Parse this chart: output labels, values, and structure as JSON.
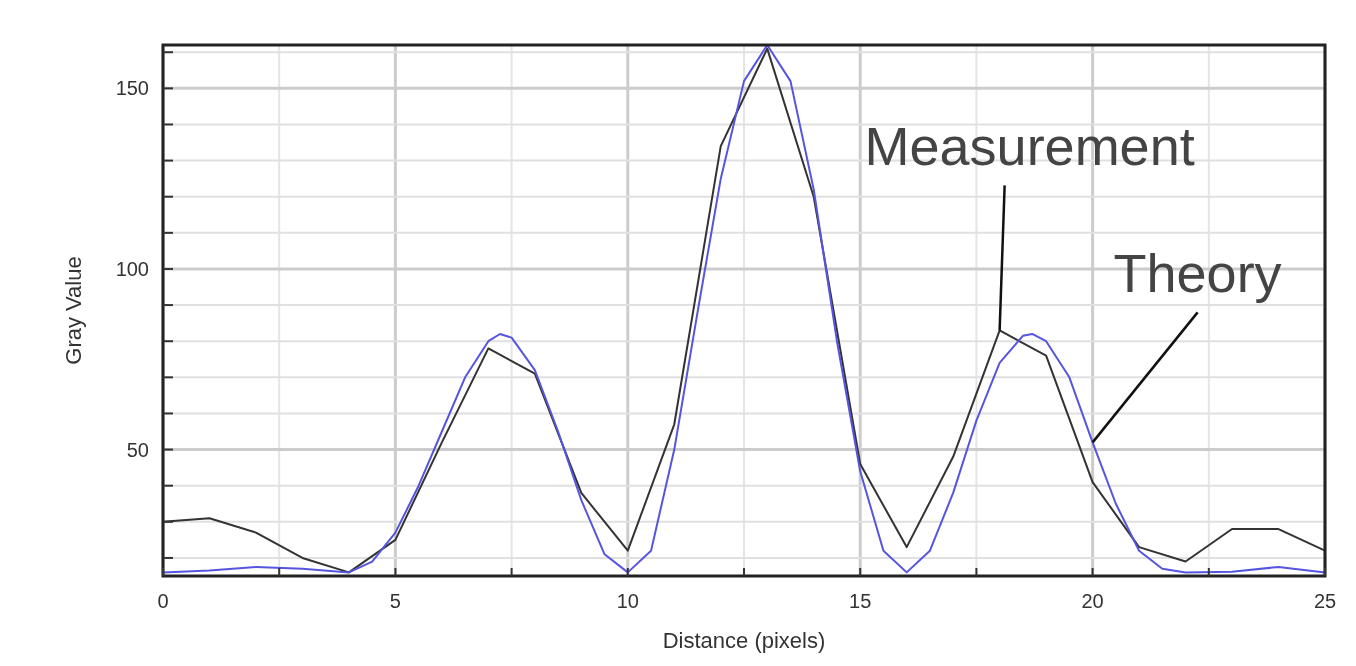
{
  "chart_data": {
    "type": "line",
    "xlabel": "Distance (pixels)",
    "ylabel": "Gray Value",
    "xlim": [
      0,
      25
    ],
    "ylim": [
      15,
      162
    ],
    "xticks": [
      0,
      {
        "value": 2.5,
        "label": null
      },
      5,
      {
        "value": 7.5,
        "label": null
      },
      10,
      {
        "value": 12.5,
        "label": null
      },
      15,
      {
        "value": 17.5,
        "label": null
      },
      20,
      {
        "value": 22.5,
        "label": null
      },
      25
    ],
    "yticks": [
      {
        "value": 20,
        "label": null
      },
      {
        "value": 30,
        "label": null
      },
      {
        "value": 40,
        "label": null
      },
      50,
      {
        "value": 60,
        "label": null
      },
      {
        "value": 70,
        "label": null
      },
      {
        "value": 80,
        "label": null
      },
      {
        "value": 90,
        "label": null
      },
      100,
      {
        "value": 110,
        "label": null
      },
      {
        "value": 120,
        "label": null
      },
      {
        "value": 130,
        "label": null
      },
      {
        "value": 140,
        "label": null
      },
      150,
      {
        "value": 160,
        "label": null
      }
    ],
    "grid": true,
    "marker": "none",
    "series": [
      {
        "color": "#333333",
        "x": [
          0,
          1,
          2,
          3,
          4,
          5,
          6,
          7,
          8,
          9,
          10,
          11,
          12,
          13,
          14,
          15,
          16,
          17,
          18,
          19,
          20,
          21,
          22,
          23,
          24,
          25
        ],
        "values": [
          30,
          31,
          27,
          20,
          16,
          25,
          52,
          78,
          71,
          38,
          22,
          57,
          134,
          161,
          120,
          46,
          23,
          48,
          83,
          76,
          41,
          23,
          19,
          28,
          28,
          22
        ]
      },
      {
        "color": "#5555e0",
        "x": [
          0,
          1,
          2,
          3,
          4,
          4.5,
          5,
          5.5,
          6,
          6.5,
          7,
          7.25,
          7.5,
          8,
          8.5,
          9,
          9.5,
          10,
          10.5,
          11,
          11.5,
          12,
          12.5,
          13,
          13.5,
          14,
          14.5,
          15,
          15.5,
          16,
          16.5,
          17,
          17.5,
          18,
          18.5,
          18.7,
          19,
          19.5,
          20,
          20.5,
          21,
          21.5,
          22,
          23,
          24,
          25
        ],
        "values": [
          16,
          16.5,
          17.5,
          17,
          16,
          19,
          27,
          40,
          55,
          70,
          80,
          82,
          81,
          72,
          55,
          36,
          21,
          16,
          22,
          50,
          88,
          125,
          152,
          162,
          152,
          122,
          80,
          44,
          22,
          16,
          22,
          38,
          58,
          74,
          81.5,
          82,
          80,
          70,
          52,
          35,
          22,
          17,
          16,
          16.2,
          17.5,
          16
        ]
      }
    ],
    "annotations": [
      {
        "text": "Measurement",
        "x": 18,
        "y": 83
      },
      {
        "text": "Theory",
        "x": 20,
        "y": 52
      }
    ]
  }
}
